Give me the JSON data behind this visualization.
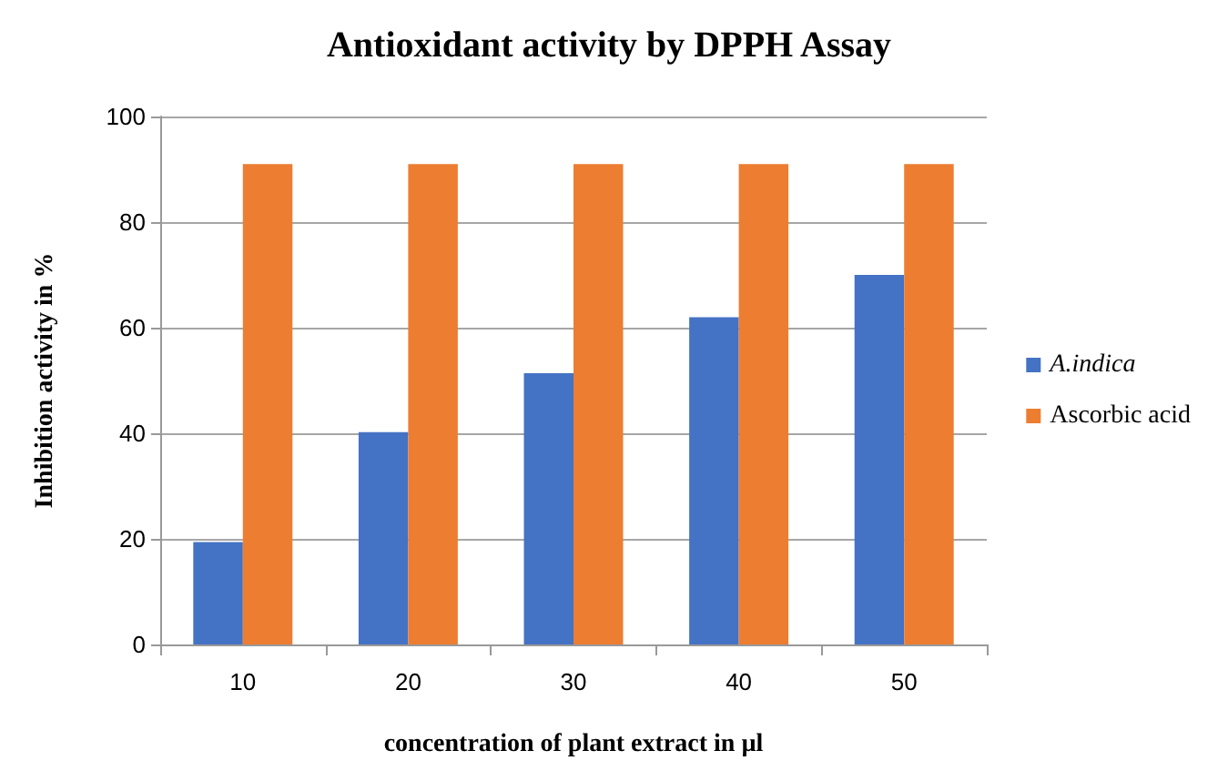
{
  "chart_data": {
    "type": "bar",
    "title": "Antioxidant activity by DPPH Assay",
    "xlabel": "concentration of plant extract in µl",
    "ylabel": "Inhibition activity in %",
    "categories": [
      "10",
      "20",
      "30",
      "40",
      "50"
    ],
    "series": [
      {
        "name": "A.indica",
        "color": "#4472c4",
        "values": [
          19.4,
          40.2,
          51.4,
          62,
          70
        ]
      },
      {
        "name": "Ascorbic acid",
        "color": "#ed7d31",
        "values": [
          91,
          91,
          91,
          91,
          91
        ]
      }
    ],
    "ylim": [
      0,
      100
    ],
    "yticks": [
      0,
      20,
      40,
      60,
      80,
      100
    ],
    "grid": "y",
    "legend": "right"
  }
}
